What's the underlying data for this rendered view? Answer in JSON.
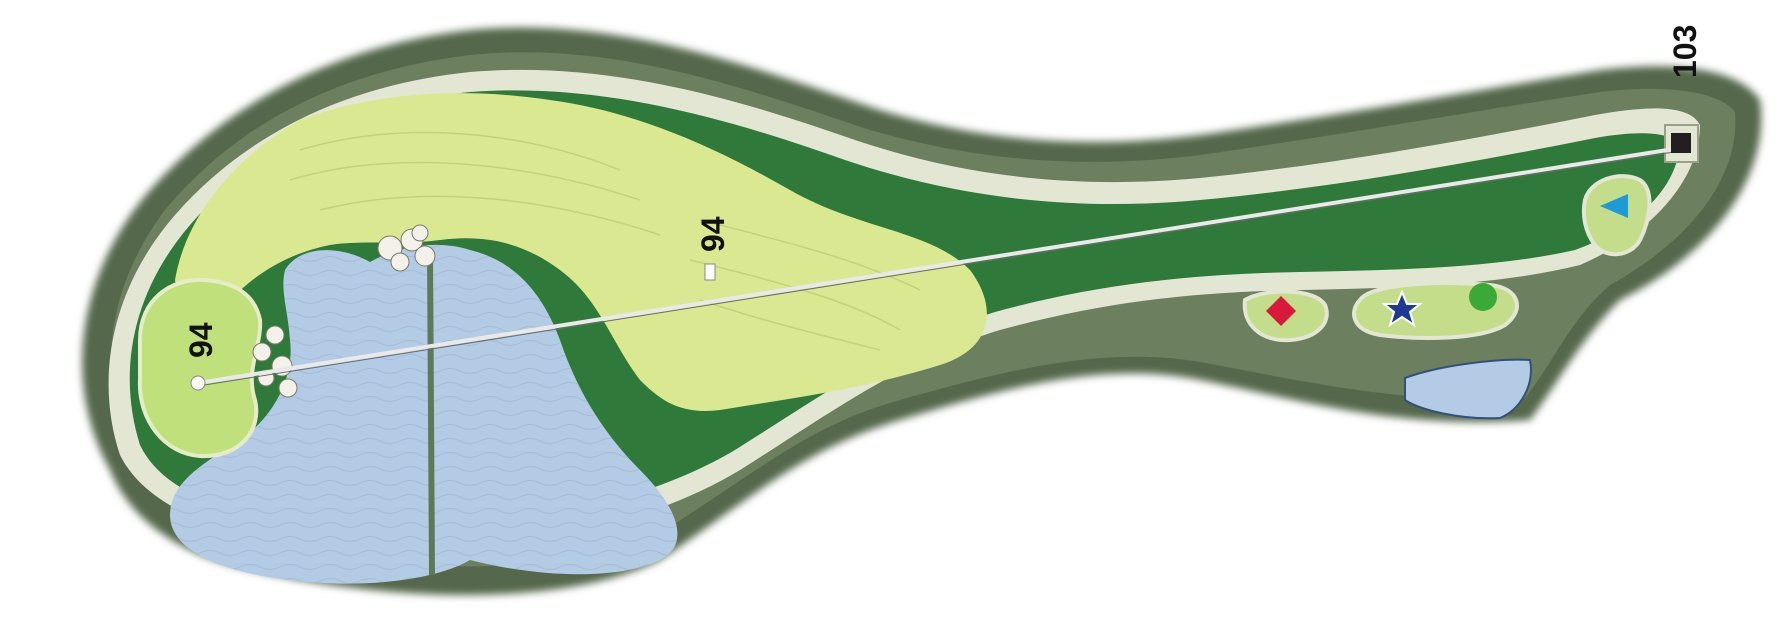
{
  "hole": {
    "yardage_labels": [
      {
        "id": "green",
        "text": "94"
      },
      {
        "id": "fairway",
        "text": "94"
      },
      {
        "id": "tee",
        "text": "103"
      }
    ],
    "tee_markers": [
      {
        "id": "black",
        "shape": "square",
        "color": "#231f20"
      },
      {
        "id": "blue",
        "shape": "triangle",
        "color": "#1e9ad6"
      },
      {
        "id": "green",
        "shape": "circle",
        "color": "#3aa935"
      },
      {
        "id": "white",
        "shape": "star",
        "color": "#1f3a93"
      },
      {
        "id": "red",
        "shape": "diamond",
        "color": "#d7193b"
      }
    ],
    "colors": {
      "rough_dark": "#3e6a3a",
      "rough": "#2f7a3a",
      "path": "#e4e6d4",
      "fairway": "#dbe892",
      "green": "#bfe07a",
      "water": "#b4cbe6",
      "woods": "#5c6d55",
      "tee_box": "#c4dd8a"
    }
  }
}
